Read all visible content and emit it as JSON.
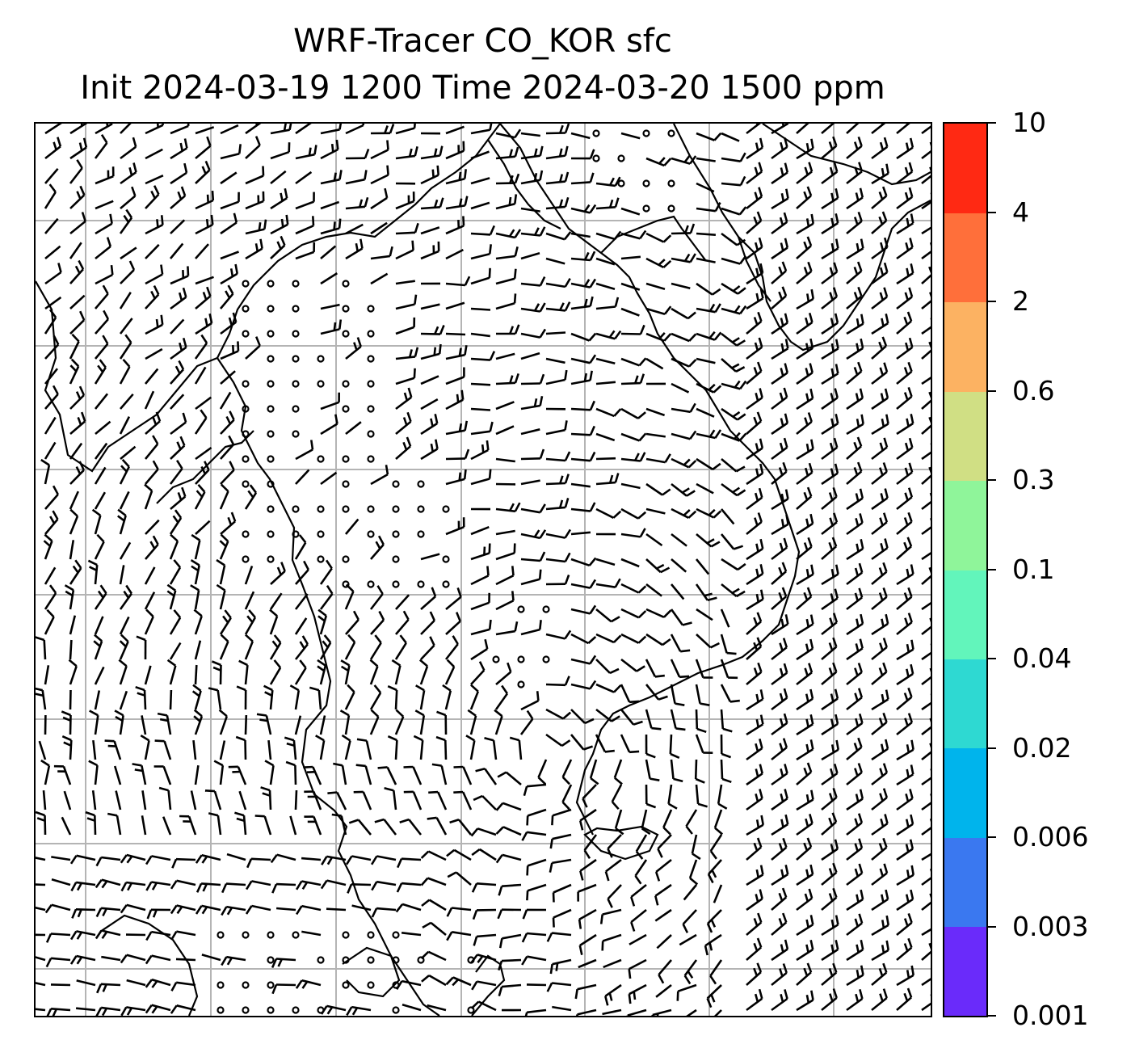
{
  "title": {
    "line1": "WRF-Tracer CO_KOR sfc",
    "line2": "Init 2024-03-19 1200 Time 2024-03-20 1500 ppm"
  },
  "colorbar": {
    "levels": [
      "0.001",
      "0.003",
      "0.006",
      "0.02",
      "0.04",
      "0.1",
      "0.3",
      "0.6",
      "2",
      "4",
      "10"
    ],
    "colors": [
      "#6a2bfa",
      "#3a78f0",
      "#00b4ec",
      "#2ed9d2",
      "#62f5bb",
      "#8ff59a",
      "#d0df84",
      "#fcb262",
      "#ff6f3a",
      "#ff2913"
    ]
  },
  "map": {
    "gridlines": true,
    "grid_color": "#b4b4b4",
    "coastline_color": "#000000",
    "wind_barb_color": "#000000",
    "tracer_field_visible": false
  }
}
